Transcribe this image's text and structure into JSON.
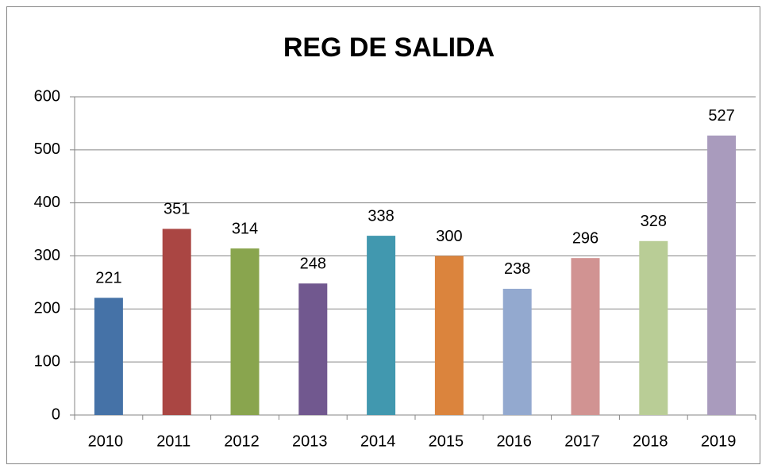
{
  "chart_data": {
    "type": "bar",
    "title": "REG DE SALIDA",
    "categories": [
      "2010",
      "2011",
      "2012",
      "2013",
      "2014",
      "2015",
      "2016",
      "2017",
      "2018",
      "2019"
    ],
    "values": [
      221,
      351,
      314,
      248,
      338,
      300,
      238,
      296,
      328,
      527
    ],
    "colors": [
      "#4572a7",
      "#aa4643",
      "#89a54e",
      "#71588f",
      "#4198af",
      "#db843d",
      "#93a9cf",
      "#d19392",
      "#b9cd96",
      "#a99bbd"
    ],
    "ylim": [
      0,
      600
    ],
    "yticks": [
      0,
      100,
      200,
      300,
      400,
      500,
      600
    ],
    "grid": true
  }
}
